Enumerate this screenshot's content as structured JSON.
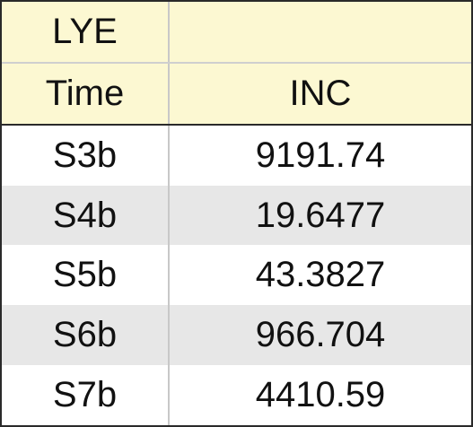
{
  "header": {
    "row1": [
      "LYE",
      ""
    ],
    "row2": [
      "Time",
      "INC"
    ]
  },
  "rows": [
    [
      "S3b",
      "9191.74"
    ],
    [
      "S4b",
      "19.6477"
    ],
    [
      "S5b",
      "43.3827"
    ],
    [
      "S6b",
      "966.704"
    ],
    [
      "S7b",
      "4410.59"
    ]
  ]
}
